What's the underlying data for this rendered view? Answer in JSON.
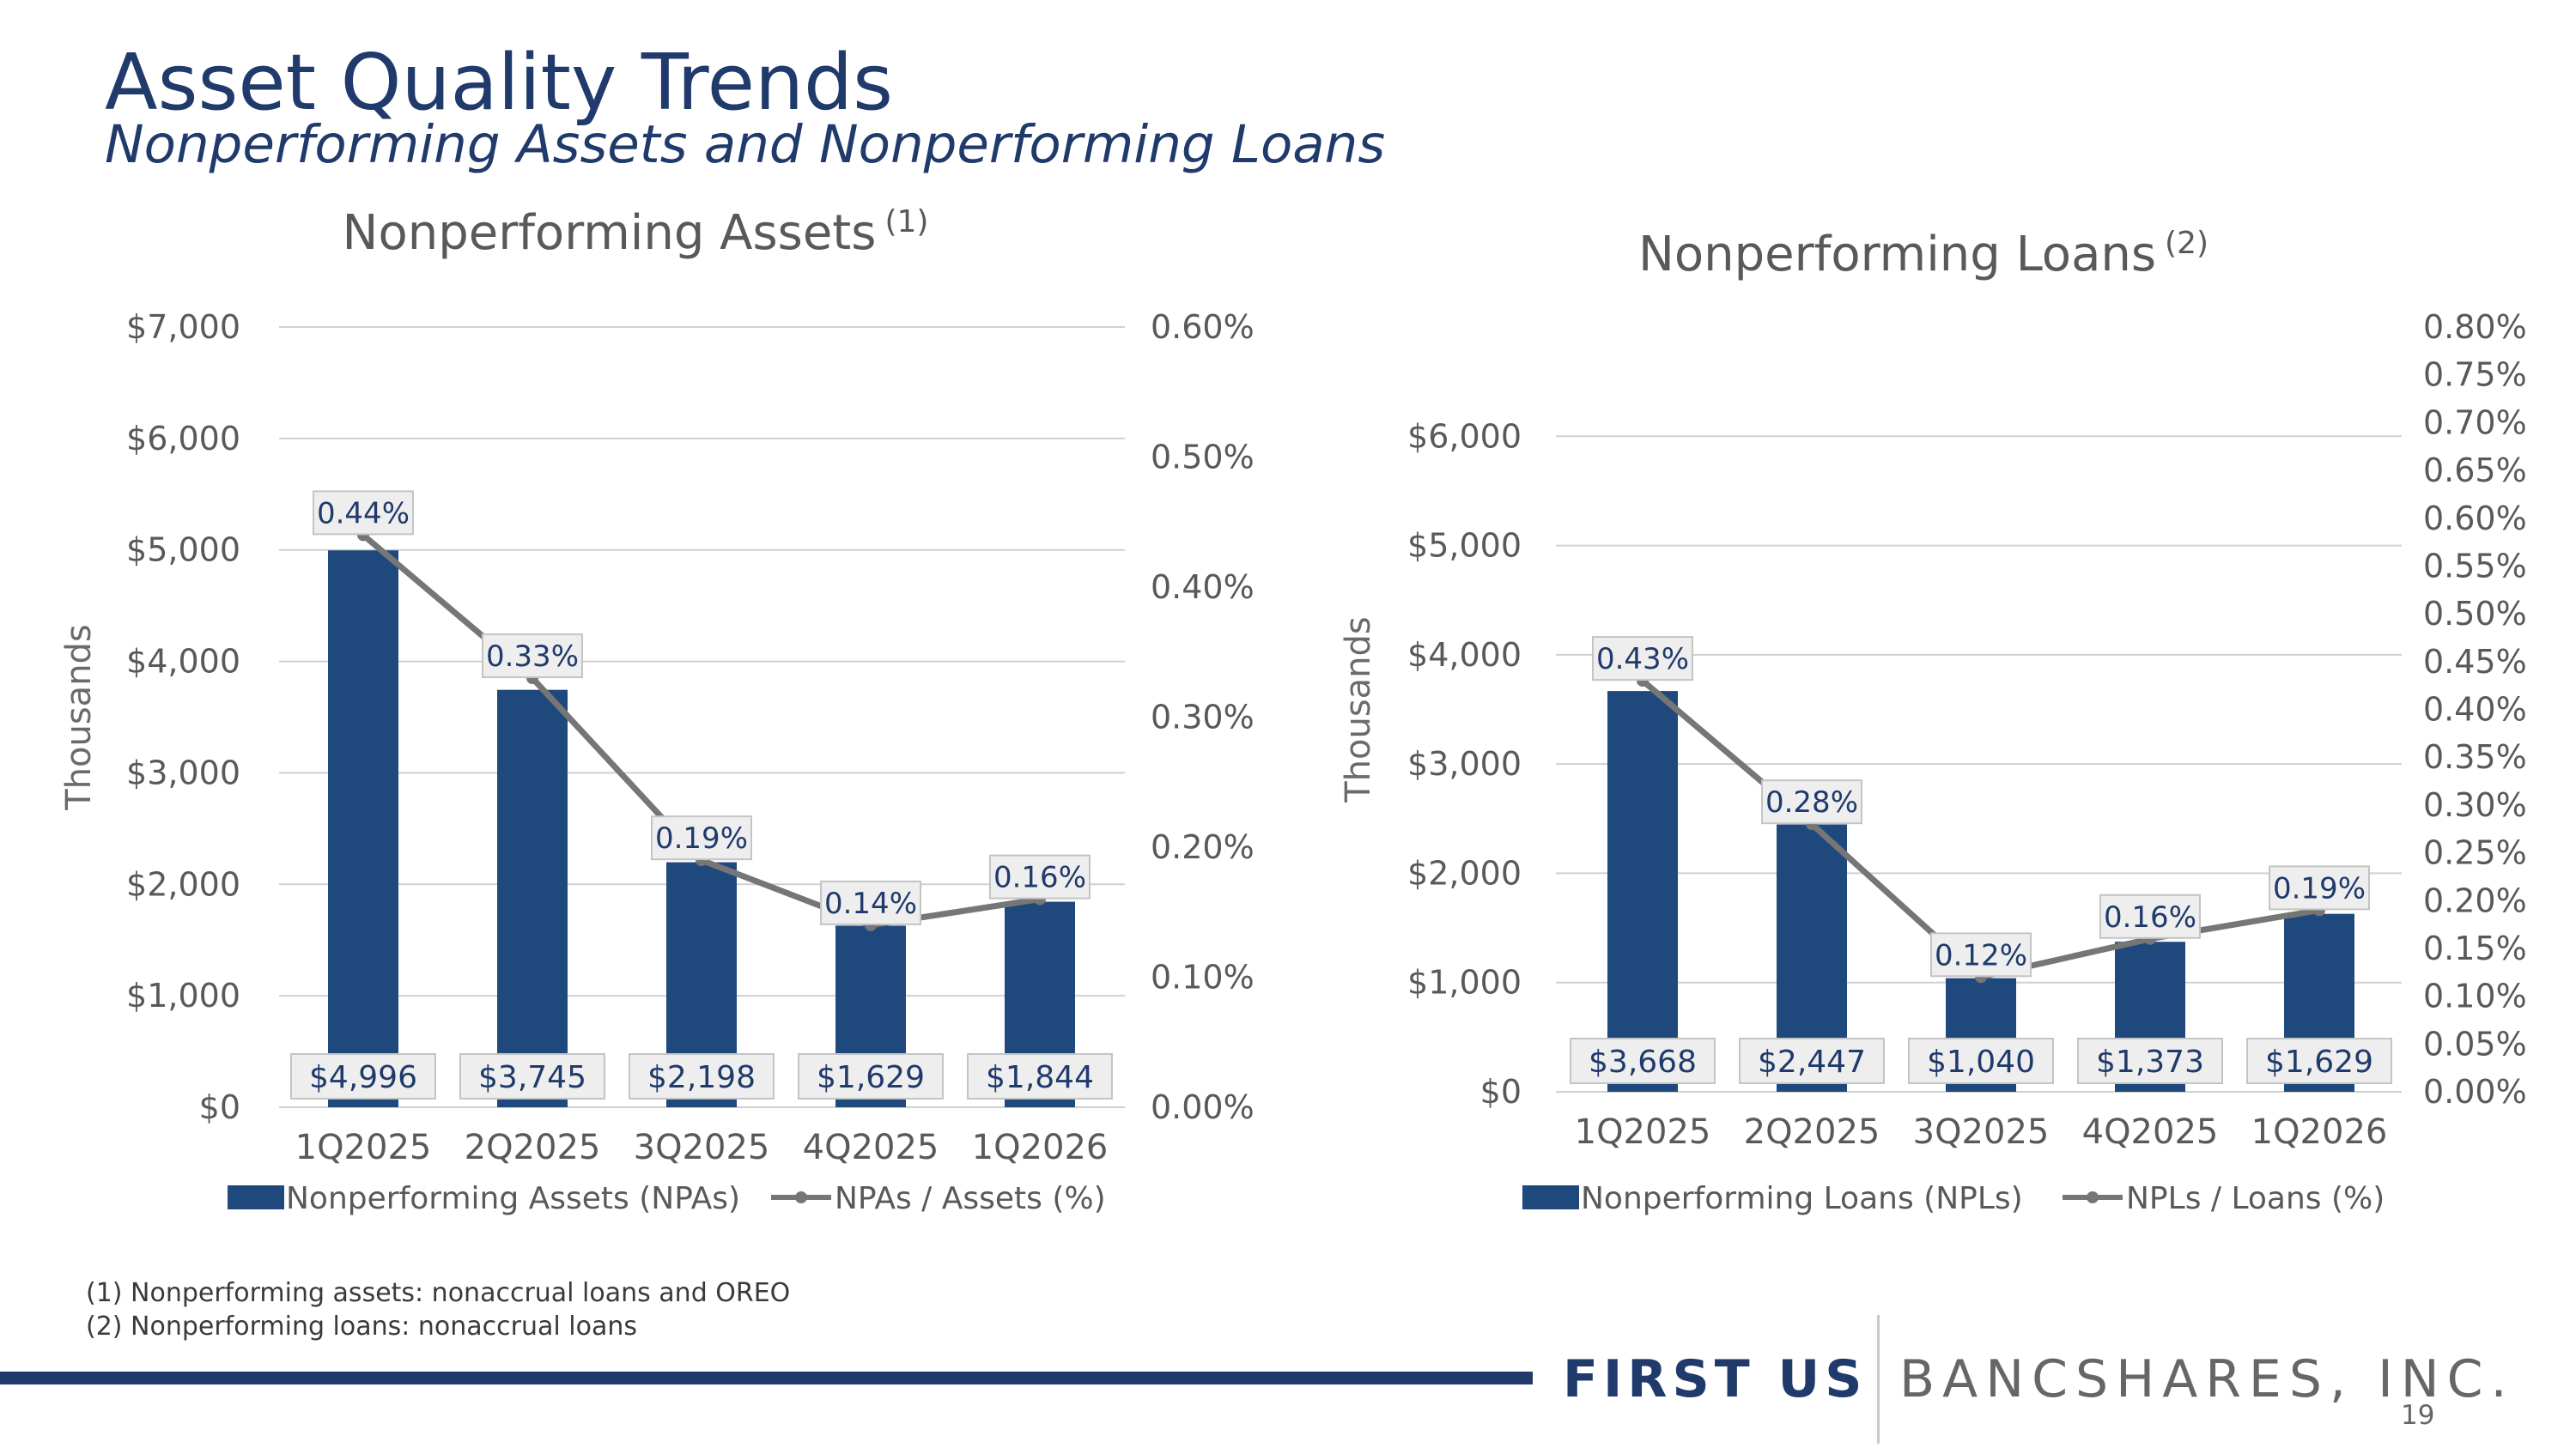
{
  "slide": {
    "title": "Asset Quality Trends",
    "subtitle": "Nonperforming Assets and Nonperforming Loans",
    "footnotes": [
      "(1)  Nonperforming assets: nonaccrual loans and OREO",
      "(2)  Nonperforming loans: nonaccrual loans"
    ],
    "footer": {
      "brand_bold": "FIRST US",
      "brand_rest": "BANCSHARES, INC.",
      "page_number": "19"
    }
  },
  "chart_data": [
    {
      "type": "bar",
      "title": "Nonperforming Assets",
      "title_sup": "(1)",
      "categories": [
        "1Q2025",
        "2Q2025",
        "3Q2025",
        "4Q2025",
        "1Q2026"
      ],
      "ylabel": "Thousands",
      "ylim": [
        0,
        7000
      ],
      "y_ticks": [
        "$7,000",
        "$6,000",
        "$5,000",
        "$4,000",
        "$3,000",
        "$2,000",
        "$1,000",
        "$0"
      ],
      "y2lim": [
        0,
        0.6
      ],
      "y2_ticks": [
        "0.60%",
        "0.50%",
        "0.40%",
        "0.30%",
        "0.20%",
        "0.10%",
        "0.00%"
      ],
      "grid": true,
      "legend_position": "bottom",
      "series": [
        {
          "name": "Nonperforming Assets (NPAs)",
          "kind": "bar",
          "axis": "left",
          "color": "#1f497d",
          "values": [
            4996,
            3745,
            2198,
            1629,
            1844
          ],
          "labels": [
            "$4,996",
            "$3,745",
            "$2,198",
            "$1,629",
            "$1,844"
          ]
        },
        {
          "name": "NPAs / Assets (%)",
          "kind": "line",
          "axis": "right",
          "color": "#767676",
          "values": [
            0.44,
            0.33,
            0.19,
            0.14,
            0.16
          ],
          "labels": [
            "0.44%",
            "0.33%",
            "0.19%",
            "0.14%",
            "0.16%"
          ]
        }
      ]
    },
    {
      "type": "bar",
      "title": "Nonperforming Loans",
      "title_sup": "(2)",
      "categories": [
        "1Q2025",
        "2Q2025",
        "3Q2025",
        "4Q2025",
        "1Q2026"
      ],
      "ylabel": "Thousands",
      "ylim": [
        0,
        7000
      ],
      "y_ticks": [
        "$6,000",
        "$5,000",
        "$4,000",
        "$3,000",
        "$2,000",
        "$1,000",
        "$0"
      ],
      "y2lim": [
        0,
        0.8
      ],
      "y2_ticks": [
        "0.80%",
        "0.75%",
        "0.70%",
        "0.65%",
        "0.60%",
        "0.55%",
        "0.50%",
        "0.45%",
        "0.40%",
        "0.35%",
        "0.30%",
        "0.25%",
        "0.20%",
        "0.15%",
        "0.10%",
        "0.05%",
        "0.00%"
      ],
      "grid": true,
      "legend_position": "bottom",
      "series": [
        {
          "name": "Nonperforming Loans (NPLs)",
          "kind": "bar",
          "axis": "left",
          "color": "#1f497d",
          "values": [
            3668,
            2447,
            1040,
            1373,
            1629
          ],
          "labels": [
            "$3,668",
            "$2,447",
            "$1,040",
            "$1,373",
            "$1,629"
          ]
        },
        {
          "name": "NPLs / Loans (%)",
          "kind": "line",
          "axis": "right",
          "color": "#767676",
          "values": [
            0.43,
            0.28,
            0.12,
            0.16,
            0.19
          ],
          "labels": [
            "0.43%",
            "0.28%",
            "0.12%",
            "0.16%",
            "0.19%"
          ]
        }
      ]
    }
  ]
}
